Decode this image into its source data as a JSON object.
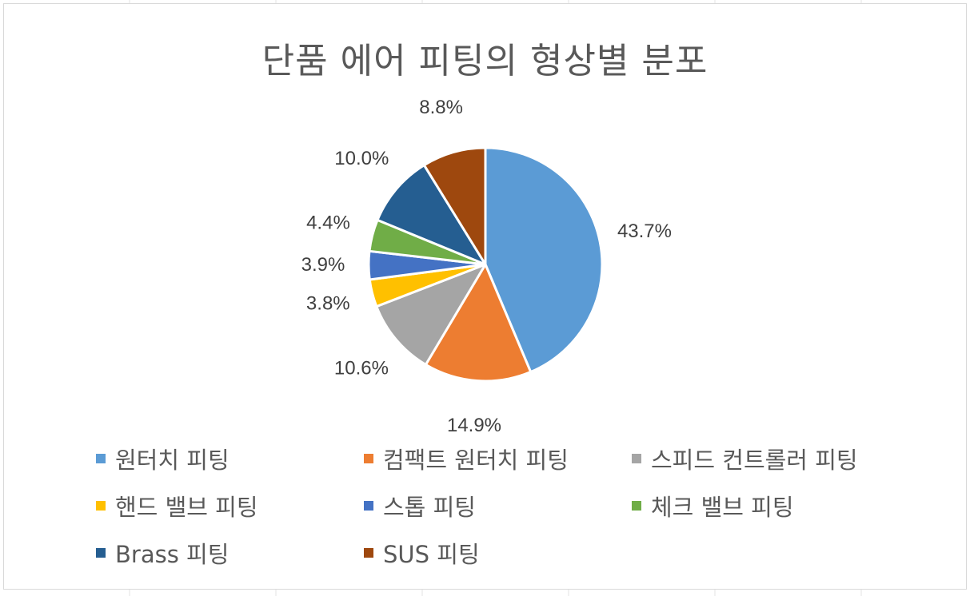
{
  "chart_data": {
    "type": "pie",
    "title": "단품 에어 피팅의 형상별 분포",
    "categories": [
      "원터치 피팅",
      "컴팩트 원터치 피팅",
      "스피드 컨트롤러 피팅",
      "핸드 밸브 피팅",
      "스톱 피팅",
      "체크 밸브 피팅",
      "Brass 피팅",
      "SUS 피팅"
    ],
    "values": [
      43.7,
      14.9,
      10.6,
      3.8,
      3.9,
      4.4,
      10.0,
      8.8
    ],
    "labels": [
      "43.7%",
      "14.9%",
      "10.6%",
      "3.8%",
      "3.9%",
      "4.4%",
      "10.0%",
      "8.8%"
    ],
    "colors": [
      "#5B9BD5",
      "#ED7D31",
      "#A5A5A5",
      "#FFC000",
      "#4472C4",
      "#70AD47",
      "#255E91",
      "#9E480E"
    ],
    "legend_position": "bottom",
    "start_angle": "12 o'clock, clockwise"
  }
}
